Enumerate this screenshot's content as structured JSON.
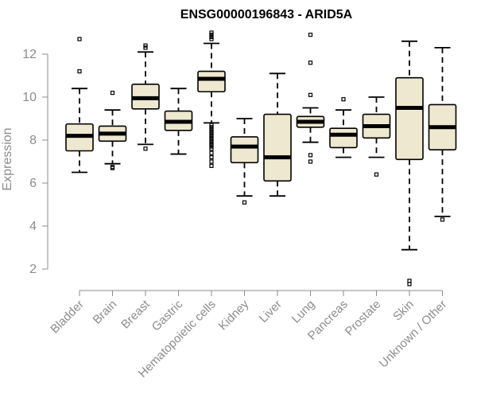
{
  "chart_data": {
    "type": "boxplot",
    "title": "ENSG00000196843 - ARID5A",
    "xlabel": "",
    "ylabel": "Expression",
    "ylim": [
      1,
      13.5
    ],
    "yticks": [
      2,
      4,
      6,
      8,
      10,
      12
    ],
    "grid": false,
    "box_color": "#efe8d0",
    "categories": [
      "Bladder",
      "Brain",
      "Breast",
      "Gastric",
      "Hematopoietic cells",
      "Kidney",
      "Liver",
      "Lung",
      "Pancreas",
      "Prostate",
      "Skin",
      "Unknown / Other"
    ],
    "series": [
      {
        "category": "Bladder",
        "whisker_low": 6.5,
        "q1": 7.5,
        "median": 8.2,
        "q3": 8.75,
        "whisker_high": 10.4,
        "outliers": [
          11.2,
          12.7
        ]
      },
      {
        "category": "Brain",
        "whisker_low": 6.9,
        "q1": 7.95,
        "median": 8.3,
        "q3": 8.65,
        "whisker_high": 9.4,
        "outliers": [
          6.7,
          6.75,
          10.2
        ]
      },
      {
        "category": "Breast",
        "whisker_low": 7.8,
        "q1": 9.45,
        "median": 9.95,
        "q3": 10.6,
        "whisker_high": 12.1,
        "outliers": [
          7.6,
          12.3,
          12.4
        ]
      },
      {
        "category": "Gastric",
        "whisker_low": 7.35,
        "q1": 8.45,
        "median": 8.85,
        "q3": 9.35,
        "whisker_high": 10.4,
        "outliers": []
      },
      {
        "category": "Hematopoietic cells",
        "whisker_low": 8.8,
        "q1": 10.25,
        "median": 10.85,
        "q3": 11.2,
        "whisker_high": 12.5,
        "outliers": [
          6.8,
          7.0,
          7.2,
          7.4,
          7.6,
          7.7,
          7.8,
          7.9,
          8.0,
          8.1,
          8.2,
          8.3,
          8.4,
          8.5,
          8.6,
          8.7,
          12.7,
          12.8,
          12.9,
          13.0
        ]
      },
      {
        "category": "Kidney",
        "whisker_low": 5.4,
        "q1": 6.95,
        "median": 7.7,
        "q3": 8.15,
        "whisker_high": 9.0,
        "outliers": [
          5.1
        ]
      },
      {
        "category": "Liver",
        "whisker_low": 5.4,
        "q1": 6.1,
        "median": 7.2,
        "q3": 9.2,
        "whisker_high": 11.1,
        "outliers": []
      },
      {
        "category": "Lung",
        "whisker_low": 7.9,
        "q1": 8.6,
        "median": 8.85,
        "q3": 9.1,
        "whisker_high": 9.5,
        "outliers": [
          7.0,
          7.3,
          10.1,
          11.6,
          12.9
        ]
      },
      {
        "category": "Pancreas",
        "whisker_low": 7.2,
        "q1": 7.65,
        "median": 8.25,
        "q3": 8.55,
        "whisker_high": 9.4,
        "outliers": [
          9.9
        ]
      },
      {
        "category": "Prostate",
        "whisker_low": 7.2,
        "q1": 8.1,
        "median": 8.65,
        "q3": 9.2,
        "whisker_high": 10.0,
        "outliers": [
          6.4
        ]
      },
      {
        "category": "Skin",
        "whisker_low": 2.9,
        "q1": 7.1,
        "median": 9.5,
        "q3": 10.9,
        "whisker_high": 12.6,
        "outliers": [
          1.3,
          1.45
        ]
      },
      {
        "category": "Unknown / Other",
        "whisker_low": 4.45,
        "q1": 7.55,
        "median": 8.6,
        "q3": 9.65,
        "whisker_high": 12.3,
        "outliers": [
          4.3
        ]
      }
    ]
  }
}
